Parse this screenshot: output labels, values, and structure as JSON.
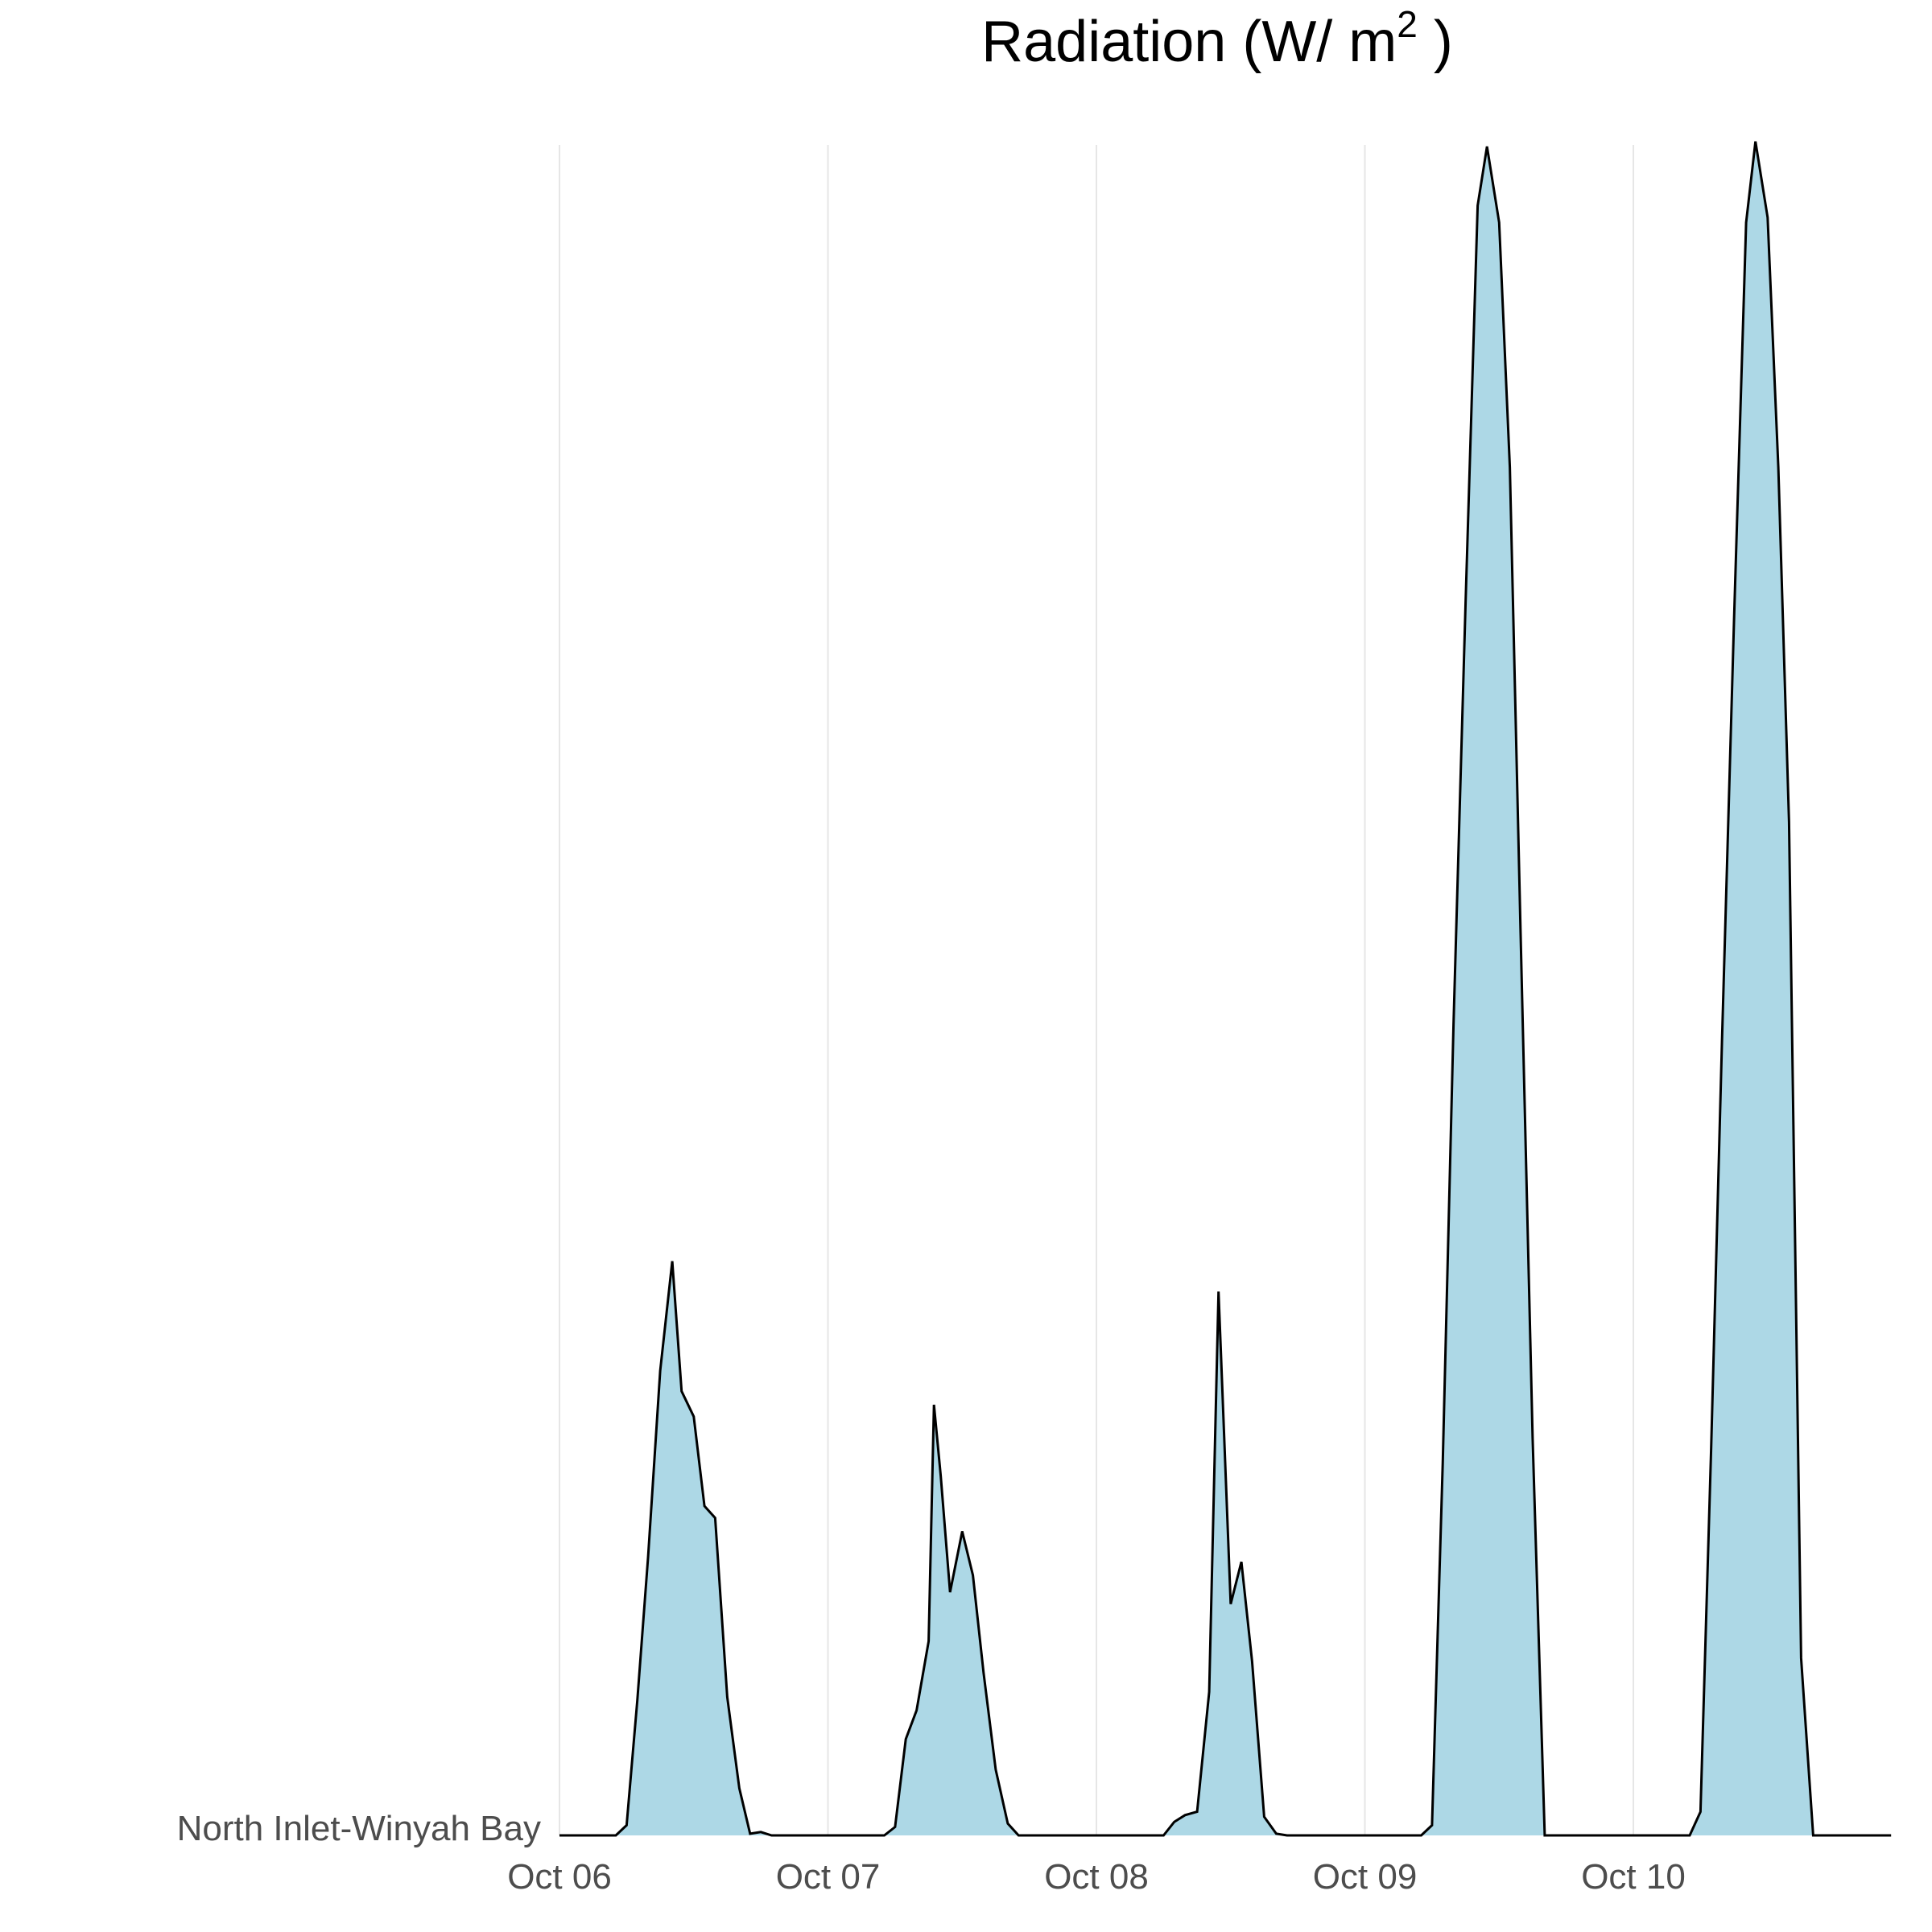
{
  "chart_data": {
    "type": "area",
    "title": {
      "prefix": "Radiation (W/  m",
      "superscript": "2",
      "suffix": " )"
    },
    "row_label": "North Inlet-Winyah Bay",
    "xlabel": "",
    "ylabel": "",
    "x_ticks": [
      "Oct 06",
      "Oct 07",
      "Oct 08",
      "Oct 09",
      "Oct 10"
    ],
    "x_tick_days": [
      0,
      1,
      2,
      3,
      4
    ],
    "xlim_days": [
      0,
      4.96
    ],
    "ylim": [
      0,
      1
    ],
    "grid": "vertical-major",
    "fill_color": "#add8e6",
    "line_color": "#000000",
    "grid_color": "#e6e6e6",
    "series": [
      {
        "x_days": [
          0,
          0.21,
          0.25,
          0.29,
          0.33,
          0.375,
          0.42,
          0.455,
          0.5,
          0.54,
          0.58,
          0.625,
          0.67,
          0.71,
          0.75,
          0.79,
          0.83,
          0.875,
          0.92,
          1.0,
          1.21,
          1.25,
          1.29,
          1.33,
          1.375,
          1.395,
          1.42,
          1.455,
          1.5,
          1.54,
          1.58,
          1.625,
          1.67,
          1.71,
          1.75,
          1.79,
          2.0,
          2.25,
          2.29,
          2.33,
          2.375,
          2.42,
          2.455,
          2.5,
          2.54,
          2.58,
          2.625,
          2.67,
          2.71,
          2.75,
          3.0,
          3.21,
          3.25,
          3.29,
          3.33,
          3.375,
          3.42,
          3.455,
          3.5,
          3.54,
          3.58,
          3.625,
          3.67,
          3.71,
          3.75,
          4.0,
          4.21,
          4.25,
          4.29,
          4.33,
          4.375,
          4.42,
          4.455,
          4.5,
          4.54,
          4.58,
          4.625,
          4.67,
          4.71,
          4.75,
          4.96
        ],
        "values": [
          0,
          0,
          0.006,
          0.08,
          0.165,
          0.275,
          0.34,
          0.263,
          0.248,
          0.195,
          0.188,
          0.082,
          0.028,
          0.001,
          0.002,
          0,
          0,
          0,
          0,
          0,
          0,
          0.005,
          0.057,
          0.074,
          0.115,
          0.255,
          0.213,
          0.144,
          0.18,
          0.154,
          0.096,
          0.039,
          0.007,
          0,
          0,
          0,
          0,
          0.0,
          0.008,
          0.012,
          0.014,
          0.085,
          0.322,
          0.137,
          0.162,
          0.103,
          0.011,
          0.001,
          0,
          0,
          0,
          0,
          0.006,
          0.22,
          0.48,
          0.73,
          0.965,
          1.0,
          0.955,
          0.81,
          0.535,
          0.235,
          0.0,
          0,
          0,
          0,
          0,
          0.014,
          0.23,
          0.47,
          0.72,
          0.955,
          1.003,
          0.958,
          0.81,
          0.6,
          0.105,
          0.0,
          0,
          0,
          0
        ]
      }
    ]
  }
}
